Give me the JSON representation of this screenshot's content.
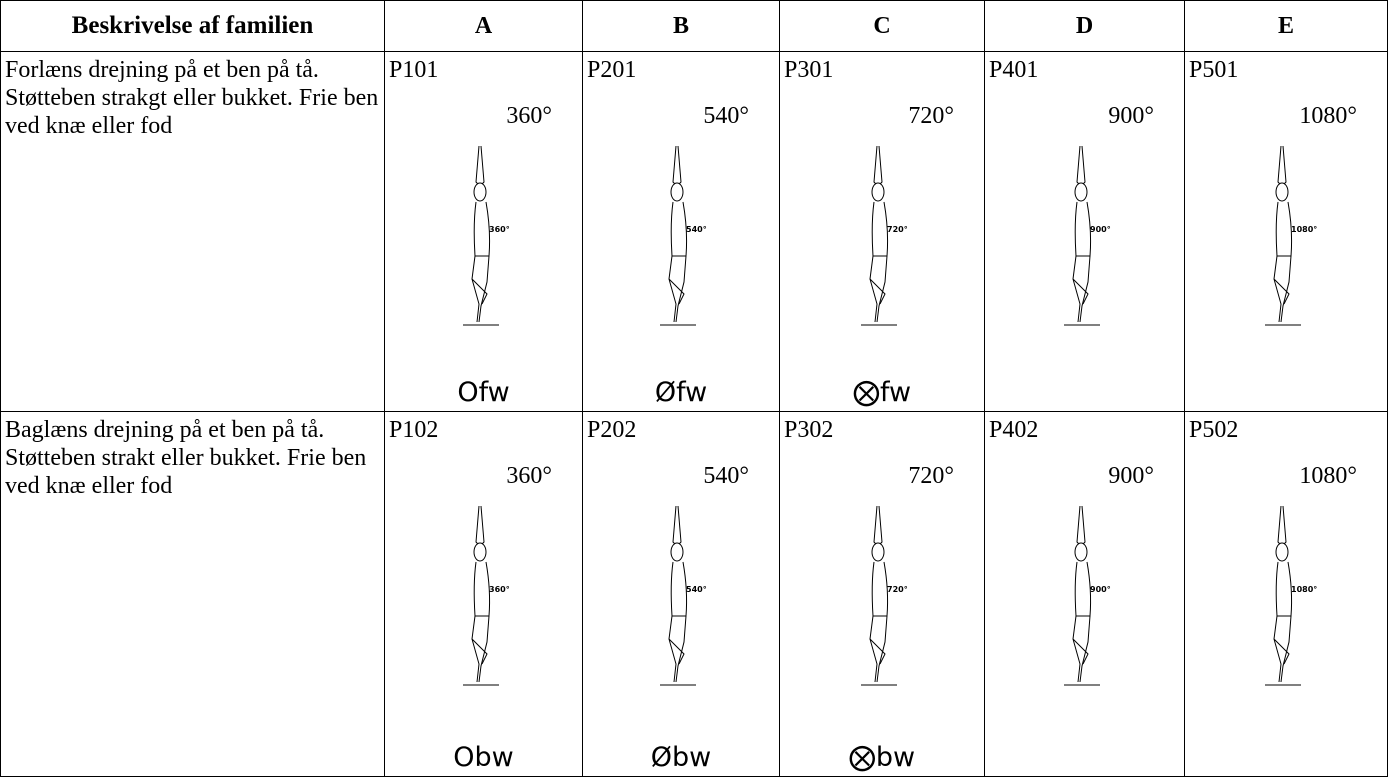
{
  "header": [
    "Beskrivelse af familien",
    "A",
    "B",
    "C",
    "D",
    "E"
  ],
  "rows": [
    {
      "description": "Forlæns drejning på et ben på tå. Støtteben strakgt eller bukket. Frie ben ved knæ eller fod",
      "cells": [
        {
          "code": "P101",
          "rotation": "360°",
          "figure_label": "360°",
          "symbol": "Ofw"
        },
        {
          "code": "P201",
          "rotation": "540°",
          "figure_label": "540°",
          "symbol": "Øfw"
        },
        {
          "code": "P301",
          "rotation": "720°",
          "figure_label": "720°",
          "symbol": "⨂fw"
        },
        {
          "code": "P401",
          "rotation": "900°",
          "figure_label": "900°"
        },
        {
          "code": "P501",
          "rotation": "1080°",
          "figure_label": "1080°"
        }
      ]
    },
    {
      "description": "Baglæns drejning på et ben på tå. Støtteben strakt eller bukket. Frie ben ved knæ eller fod",
      "cells": [
        {
          "code": "P102",
          "rotation": "360°",
          "figure_label": "360°",
          "symbol": "Obw"
        },
        {
          "code": "P202",
          "rotation": "540°",
          "figure_label": "540°",
          "symbol": "Øbw"
        },
        {
          "code": "P302",
          "rotation": "720°",
          "figure_label": "720°",
          "symbol": "⨂bw"
        },
        {
          "code": "P402",
          "rotation": "900°",
          "figure_label": "900°"
        },
        {
          "code": "P502",
          "rotation": "1080°",
          "figure_label": "1080°"
        }
      ]
    }
  ]
}
